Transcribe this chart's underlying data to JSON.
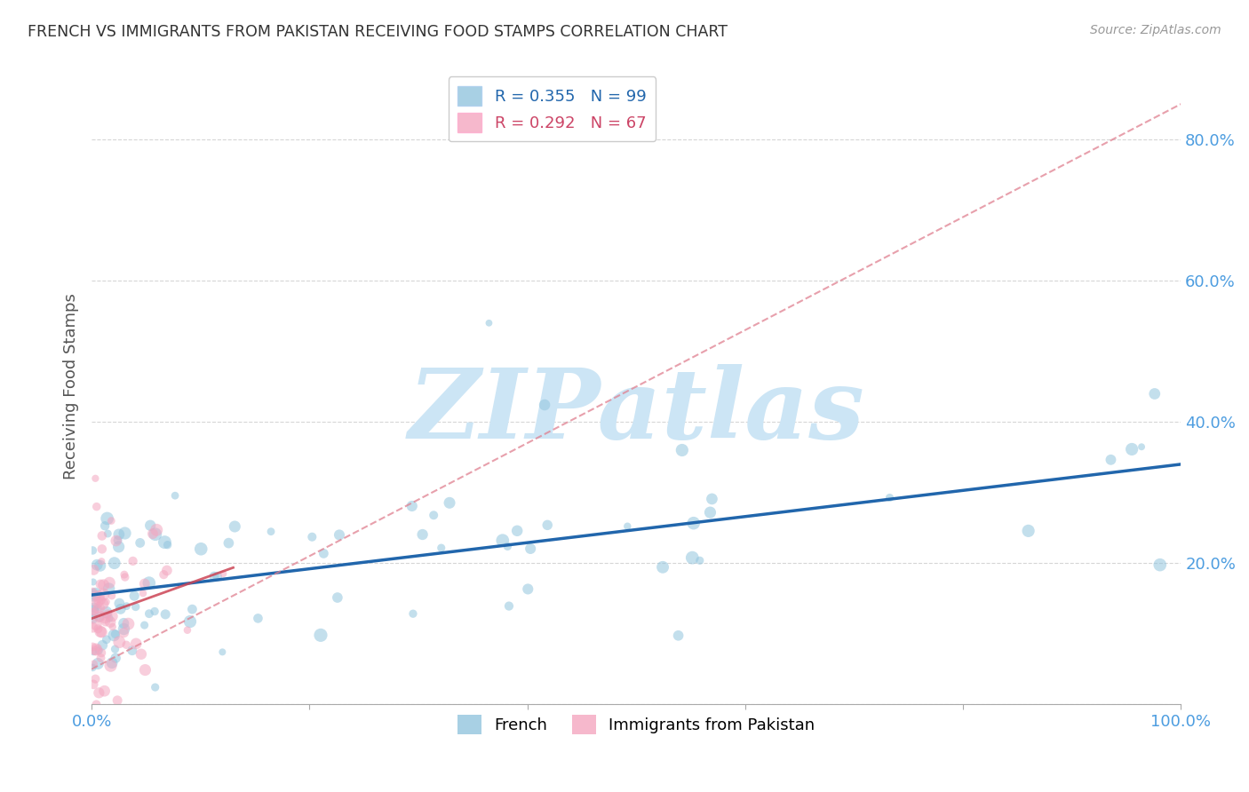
{
  "title": "FRENCH VS IMMIGRANTS FROM PAKISTAN RECEIVING FOOD STAMPS CORRELATION CHART",
  "source": "Source: ZipAtlas.com",
  "ylabel": "Receiving Food Stamps",
  "R_french": 0.355,
  "N_french": 99,
  "R_pakistan": 0.292,
  "N_pakistan": 67,
  "blue_color": "#92c5de",
  "pink_color": "#f4a6c0",
  "blue_line_color": "#2166ac",
  "pink_line_color": "#e08090",
  "watermark_color": "#cce5f5",
  "background_color": "#ffffff",
  "grid_color": "#cccccc",
  "axis_label_color": "#4d9de0",
  "title_color": "#333333",
  "source_color": "#999999",
  "ylabel_color": "#555555",
  "ytick_values": [
    0.0,
    0.2,
    0.4,
    0.6,
    0.8
  ],
  "xlim": [
    0.0,
    1.0
  ],
  "ylim": [
    0.0,
    0.9
  ]
}
